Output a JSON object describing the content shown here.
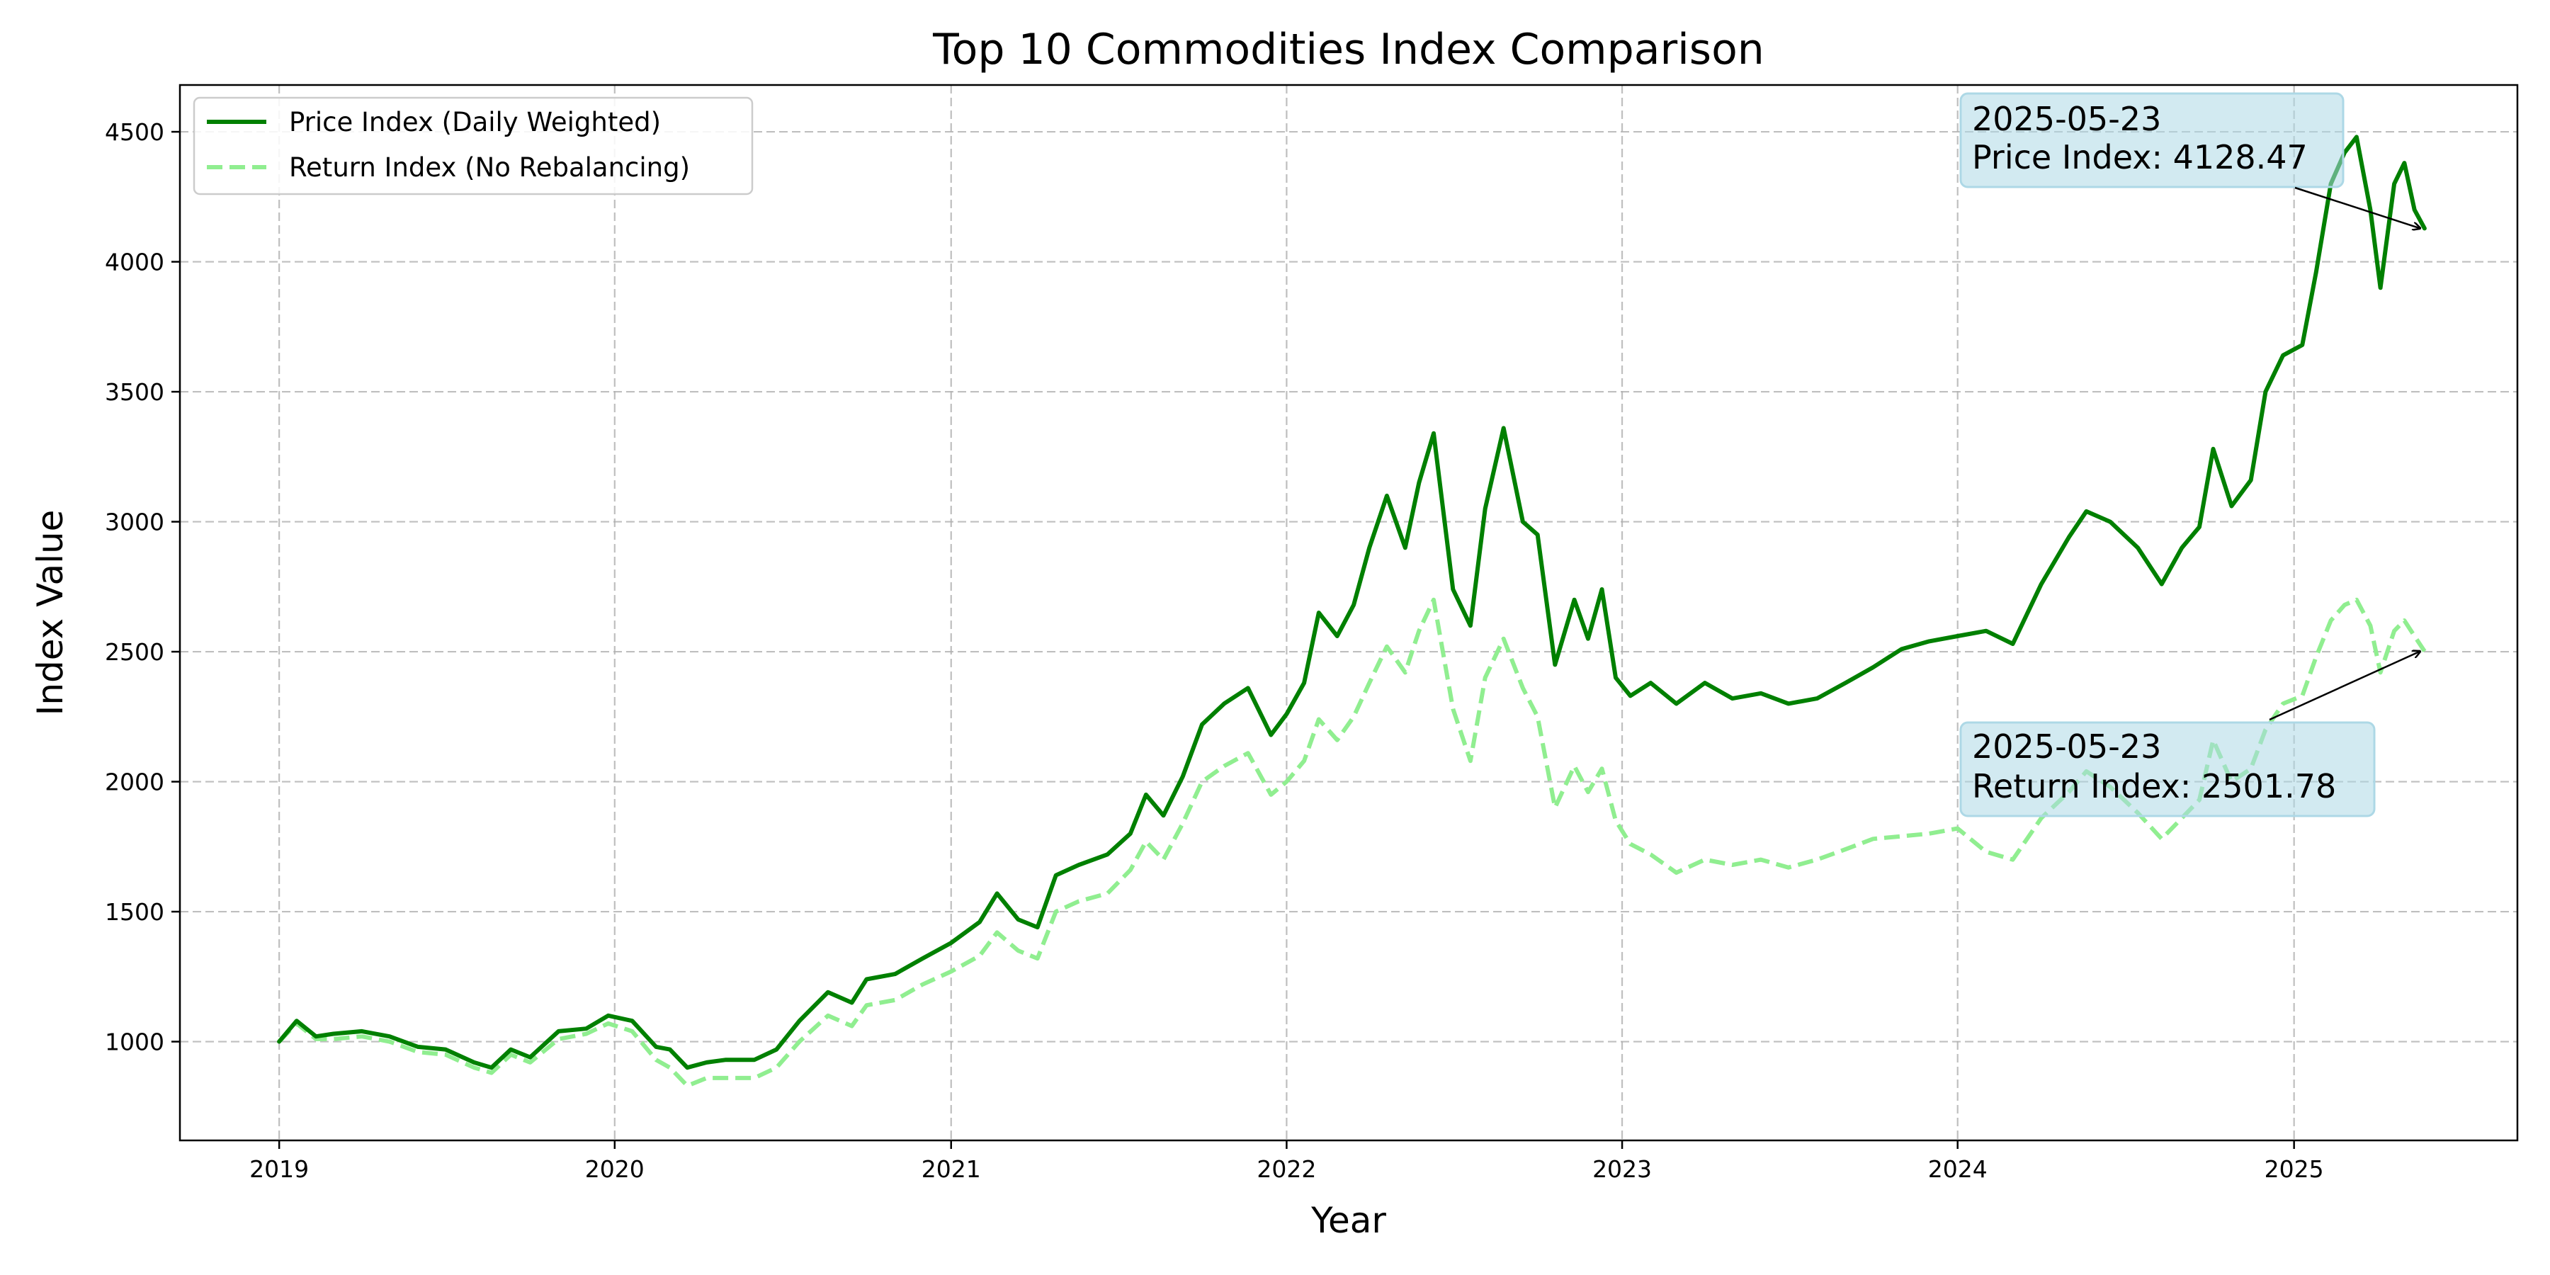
{
  "chart_data": {
    "type": "line",
    "title": "Top 10 Commodities Index Comparison",
    "xlabel": "Year",
    "ylabel": "Index Value",
    "xlim": [
      "2018-09-15",
      "2025-09-01"
    ],
    "ylim": [
      620,
      4680
    ],
    "x_ticks": [
      "2019-01-01",
      "2020-01-01",
      "2021-01-01",
      "2022-01-01",
      "2023-01-01",
      "2024-01-01",
      "2025-01-01"
    ],
    "x_tick_labels": [
      "2019",
      "2020",
      "2021",
      "2022",
      "2023",
      "2024",
      "2025"
    ],
    "y_ticks": [
      1000,
      1500,
      2000,
      2500,
      3000,
      3500,
      4000,
      4500
    ],
    "grid": true,
    "legend_position": "top-left",
    "series": [
      {
        "name": "Price Index (Daily Weighted)",
        "color": "#008000",
        "line_style": "solid",
        "points": [
          [
            "2019-01-01",
            1000
          ],
          [
            "2019-01-20",
            1080
          ],
          [
            "2019-02-10",
            1020
          ],
          [
            "2019-03-01",
            1030
          ],
          [
            "2019-04-01",
            1040
          ],
          [
            "2019-05-01",
            1020
          ],
          [
            "2019-06-01",
            980
          ],
          [
            "2019-07-01",
            970
          ],
          [
            "2019-08-01",
            920
          ],
          [
            "2019-08-20",
            900
          ],
          [
            "2019-09-10",
            970
          ],
          [
            "2019-10-01",
            940
          ],
          [
            "2019-11-01",
            1040
          ],
          [
            "2019-12-01",
            1050
          ],
          [
            "2019-12-25",
            1100
          ],
          [
            "2020-01-20",
            1080
          ],
          [
            "2020-02-15",
            980
          ],
          [
            "2020-03-01",
            970
          ],
          [
            "2020-03-20",
            900
          ],
          [
            "2020-04-10",
            920
          ],
          [
            "2020-05-01",
            930
          ],
          [
            "2020-06-01",
            930
          ],
          [
            "2020-06-25",
            970
          ],
          [
            "2020-07-20",
            1080
          ],
          [
            "2020-08-20",
            1190
          ],
          [
            "2020-09-15",
            1150
          ],
          [
            "2020-10-01",
            1240
          ],
          [
            "2020-11-01",
            1260
          ],
          [
            "2020-12-01",
            1320
          ],
          [
            "2021-01-01",
            1380
          ],
          [
            "2021-02-01",
            1460
          ],
          [
            "2021-02-20",
            1570
          ],
          [
            "2021-03-15",
            1470
          ],
          [
            "2021-04-05",
            1440
          ],
          [
            "2021-04-25",
            1640
          ],
          [
            "2021-05-20",
            1680
          ],
          [
            "2021-06-20",
            1720
          ],
          [
            "2021-07-15",
            1800
          ],
          [
            "2021-08-01",
            1950
          ],
          [
            "2021-08-20",
            1870
          ],
          [
            "2021-09-10",
            2020
          ],
          [
            "2021-10-01",
            2220
          ],
          [
            "2021-10-25",
            2300
          ],
          [
            "2021-11-20",
            2360
          ],
          [
            "2021-12-15",
            2180
          ],
          [
            "2022-01-01",
            2260
          ],
          [
            "2022-01-20",
            2380
          ],
          [
            "2022-02-05",
            2650
          ],
          [
            "2022-02-25",
            2560
          ],
          [
            "2022-03-15",
            2680
          ],
          [
            "2022-04-01",
            2900
          ],
          [
            "2022-04-20",
            3100
          ],
          [
            "2022-05-10",
            2900
          ],
          [
            "2022-05-25",
            3150
          ],
          [
            "2022-06-10",
            3340
          ],
          [
            "2022-07-01",
            2740
          ],
          [
            "2022-07-20",
            2600
          ],
          [
            "2022-08-05",
            3050
          ],
          [
            "2022-08-25",
            3360
          ],
          [
            "2022-09-15",
            3000
          ],
          [
            "2022-10-01",
            2950
          ],
          [
            "2022-10-20",
            2450
          ],
          [
            "2022-11-10",
            2700
          ],
          [
            "2022-11-25",
            2550
          ],
          [
            "2022-12-10",
            2740
          ],
          [
            "2022-12-25",
            2400
          ],
          [
            "2023-01-10",
            2330
          ],
          [
            "2023-02-01",
            2380
          ],
          [
            "2023-03-01",
            2300
          ],
          [
            "2023-04-01",
            2380
          ],
          [
            "2023-05-01",
            2320
          ],
          [
            "2023-06-01",
            2340
          ],
          [
            "2023-07-01",
            2300
          ],
          [
            "2023-08-01",
            2320
          ],
          [
            "2023-09-01",
            2380
          ],
          [
            "2023-10-01",
            2440
          ],
          [
            "2023-11-01",
            2510
          ],
          [
            "2023-12-01",
            2540
          ],
          [
            "2024-01-01",
            2560
          ],
          [
            "2024-02-01",
            2580
          ],
          [
            "2024-03-01",
            2530
          ],
          [
            "2024-04-01",
            2760
          ],
          [
            "2024-05-01",
            2940
          ],
          [
            "2024-05-20",
            3040
          ],
          [
            "2024-06-15",
            3000
          ],
          [
            "2024-07-15",
            2900
          ],
          [
            "2024-08-10",
            2760
          ],
          [
            "2024-09-01",
            2900
          ],
          [
            "2024-09-20",
            2980
          ],
          [
            "2024-10-05",
            3280
          ],
          [
            "2024-10-25",
            3060
          ],
          [
            "2024-11-15",
            3160
          ],
          [
            "2024-12-01",
            3500
          ],
          [
            "2024-12-20",
            3640
          ],
          [
            "2025-01-10",
            3680
          ],
          [
            "2025-01-25",
            3960
          ],
          [
            "2025-02-10",
            4300
          ],
          [
            "2025-02-25",
            4420
          ],
          [
            "2025-03-10",
            4480
          ],
          [
            "2025-03-25",
            4200
          ],
          [
            "2025-04-05",
            3900
          ],
          [
            "2025-04-20",
            4300
          ],
          [
            "2025-05-01",
            4380
          ],
          [
            "2025-05-12",
            4200
          ],
          [
            "2025-05-23",
            4128.47
          ]
        ]
      },
      {
        "name": "Return Index (No Rebalancing)",
        "color": "#90ee90",
        "line_style": "dashed",
        "points": [
          [
            "2019-01-01",
            1000
          ],
          [
            "2019-01-20",
            1070
          ],
          [
            "2019-02-10",
            1010
          ],
          [
            "2019-03-01",
            1010
          ],
          [
            "2019-04-01",
            1020
          ],
          [
            "2019-05-01",
            1000
          ],
          [
            "2019-06-01",
            960
          ],
          [
            "2019-07-01",
            950
          ],
          [
            "2019-08-01",
            900
          ],
          [
            "2019-08-20",
            880
          ],
          [
            "2019-09-10",
            950
          ],
          [
            "2019-10-01",
            920
          ],
          [
            "2019-11-01",
            1010
          ],
          [
            "2019-12-01",
            1030
          ],
          [
            "2019-12-25",
            1070
          ],
          [
            "2020-01-20",
            1040
          ],
          [
            "2020-02-15",
            930
          ],
          [
            "2020-03-01",
            900
          ],
          [
            "2020-03-20",
            830
          ],
          [
            "2020-04-10",
            860
          ],
          [
            "2020-05-01",
            860
          ],
          [
            "2020-06-01",
            860
          ],
          [
            "2020-06-25",
            900
          ],
          [
            "2020-07-20",
            1000
          ],
          [
            "2020-08-20",
            1100
          ],
          [
            "2020-09-15",
            1060
          ],
          [
            "2020-10-01",
            1140
          ],
          [
            "2020-11-01",
            1160
          ],
          [
            "2020-12-01",
            1220
          ],
          [
            "2021-01-01",
            1270
          ],
          [
            "2021-02-01",
            1330
          ],
          [
            "2021-02-20",
            1420
          ],
          [
            "2021-03-15",
            1350
          ],
          [
            "2021-04-05",
            1320
          ],
          [
            "2021-04-25",
            1500
          ],
          [
            "2021-05-20",
            1540
          ],
          [
            "2021-06-20",
            1570
          ],
          [
            "2021-07-15",
            1660
          ],
          [
            "2021-08-01",
            1770
          ],
          [
            "2021-08-20",
            1700
          ],
          [
            "2021-09-10",
            1840
          ],
          [
            "2021-10-01",
            2000
          ],
          [
            "2021-10-25",
            2060
          ],
          [
            "2021-11-20",
            2110
          ],
          [
            "2021-12-15",
            1950
          ],
          [
            "2022-01-01",
            2000
          ],
          [
            "2022-01-20",
            2080
          ],
          [
            "2022-02-05",
            2240
          ],
          [
            "2022-02-25",
            2160
          ],
          [
            "2022-03-15",
            2250
          ],
          [
            "2022-04-01",
            2380
          ],
          [
            "2022-04-20",
            2520
          ],
          [
            "2022-05-10",
            2420
          ],
          [
            "2022-05-25",
            2580
          ],
          [
            "2022-06-10",
            2700
          ],
          [
            "2022-07-01",
            2280
          ],
          [
            "2022-07-20",
            2080
          ],
          [
            "2022-08-05",
            2400
          ],
          [
            "2022-08-25",
            2550
          ],
          [
            "2022-09-15",
            2360
          ],
          [
            "2022-10-01",
            2250
          ],
          [
            "2022-10-20",
            1900
          ],
          [
            "2022-11-10",
            2060
          ],
          [
            "2022-11-25",
            1960
          ],
          [
            "2022-12-10",
            2050
          ],
          [
            "2022-12-25",
            1850
          ],
          [
            "2023-01-10",
            1760
          ],
          [
            "2023-02-01",
            1720
          ],
          [
            "2023-03-01",
            1650
          ],
          [
            "2023-04-01",
            1700
          ],
          [
            "2023-05-01",
            1680
          ],
          [
            "2023-06-01",
            1700
          ],
          [
            "2023-07-01",
            1670
          ],
          [
            "2023-08-01",
            1700
          ],
          [
            "2023-09-01",
            1740
          ],
          [
            "2023-10-01",
            1780
          ],
          [
            "2023-11-01",
            1790
          ],
          [
            "2023-12-01",
            1800
          ],
          [
            "2024-01-01",
            1820
          ],
          [
            "2024-02-01",
            1730
          ],
          [
            "2024-03-01",
            1700
          ],
          [
            "2024-04-01",
            1860
          ],
          [
            "2024-05-01",
            1960
          ],
          [
            "2024-05-20",
            2040
          ],
          [
            "2024-06-15",
            1980
          ],
          [
            "2024-07-15",
            1880
          ],
          [
            "2024-08-10",
            1780
          ],
          [
            "2024-09-01",
            1860
          ],
          [
            "2024-09-20",
            1930
          ],
          [
            "2024-10-05",
            2160
          ],
          [
            "2024-10-25",
            2000
          ],
          [
            "2024-11-15",
            2050
          ],
          [
            "2024-12-01",
            2200
          ],
          [
            "2024-12-20",
            2300
          ],
          [
            "2025-01-10",
            2330
          ],
          [
            "2025-01-25",
            2480
          ],
          [
            "2025-02-10",
            2620
          ],
          [
            "2025-02-25",
            2680
          ],
          [
            "2025-03-10",
            2700
          ],
          [
            "2025-03-25",
            2600
          ],
          [
            "2025-04-05",
            2420
          ],
          [
            "2025-04-20",
            2580
          ],
          [
            "2025-05-01",
            2620
          ],
          [
            "2025-05-12",
            2560
          ],
          [
            "2025-05-23",
            2501.78
          ]
        ]
      }
    ],
    "annotations": [
      {
        "target_series": 0,
        "date": "2025-05-23",
        "value": 4128.47,
        "line1": "2025-05-23",
        "line2": "Price Index: 4128.47",
        "box_color": "#add8e6"
      },
      {
        "target_series": 1,
        "date": "2025-05-23",
        "value": 2501.78,
        "line1": "2025-05-23",
        "line2": "Return Index: 2501.78",
        "box_color": "#add8e6"
      }
    ]
  }
}
